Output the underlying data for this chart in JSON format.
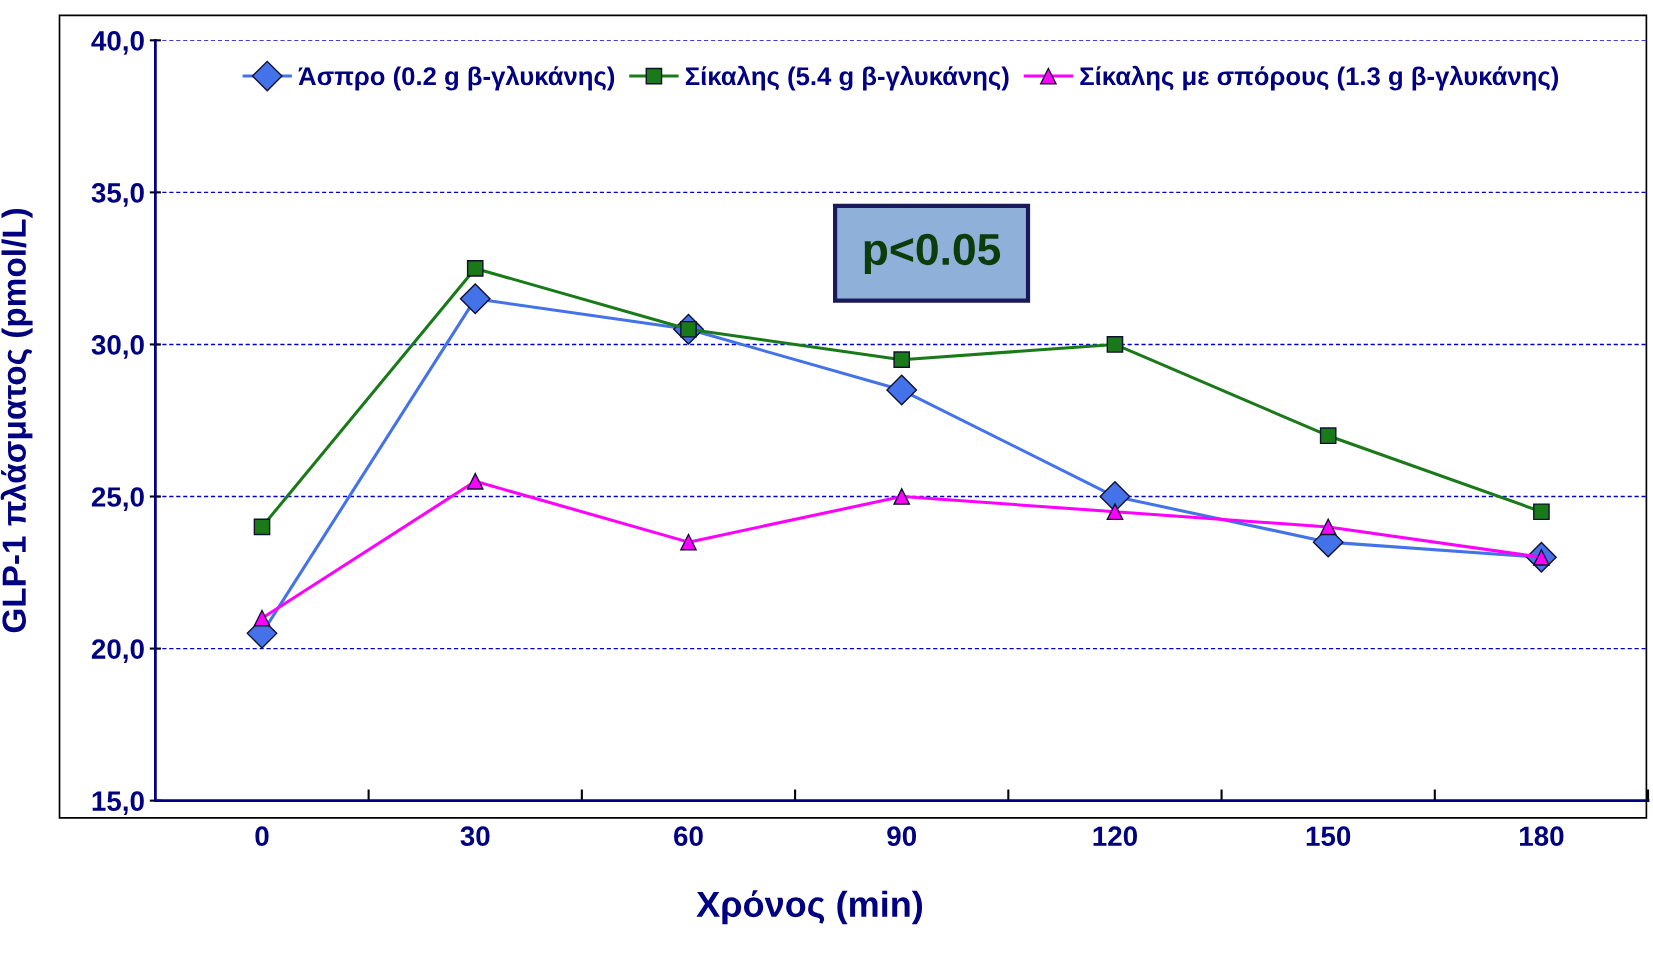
{
  "chart_data": {
    "type": "line",
    "xlabel": "Χρόνος (min)",
    "ylabel": "GLP-1 πλάσματος (pmol/L)",
    "categories": [
      "0",
      "30",
      "60",
      "90",
      "120",
      "150",
      "180"
    ],
    "ylim": [
      15,
      40
    ],
    "yticks": [
      {
        "value": 15,
        "label": "15,0"
      },
      {
        "value": 20,
        "label": "20,0"
      },
      {
        "value": 25,
        "label": "25,0"
      },
      {
        "value": 30,
        "label": "30,0"
      },
      {
        "value": 35,
        "label": "35,0"
      },
      {
        "value": 40,
        "label": "40,0"
      }
    ],
    "grid": "y",
    "legend": "top",
    "annotations": [
      "p<0.05"
    ],
    "series": [
      {
        "name": "Άσπρο (0.2 g β-γλυκάνης)",
        "color": "#4472e8",
        "marker": "diamond",
        "values": [
          20.5,
          31.5,
          30.5,
          28.5,
          25.0,
          23.5,
          23.0
        ]
      },
      {
        "name": "Σίκαλης (5.4 g β-γλυκάνης)",
        "color": "#1a7a1a",
        "marker": "square",
        "values": [
          24.0,
          32.5,
          30.5,
          29.5,
          30.0,
          27.0,
          24.5
        ]
      },
      {
        "name": "Σίκαλης με σπόρους (1.3 g β-γλυκάνης)",
        "color": "#ff00ff",
        "marker": "triangle",
        "values": [
          21.0,
          25.5,
          23.5,
          25.0,
          24.5,
          24.0,
          23.0
        ]
      }
    ]
  }
}
